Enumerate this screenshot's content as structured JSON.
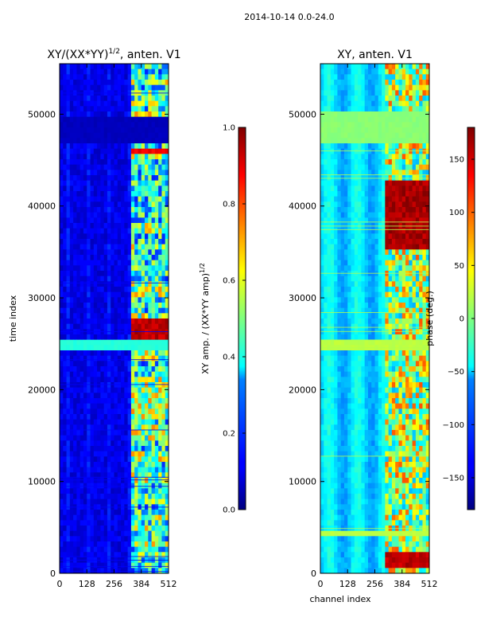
{
  "figure": {
    "suptitle": "2014-10-14 0.0-24.0"
  },
  "chart_data": [
    {
      "type": "heatmap",
      "title_main": "XY/(XX*YY)",
      "title_sup": "1/2",
      "title_tail": ", anten. V1",
      "xlabel": "",
      "ylabel": "time index",
      "xlim": [
        0,
        512
      ],
      "ylim": [
        0,
        55500
      ],
      "xticks": [
        0,
        128,
        256,
        384,
        512
      ],
      "yticks": [
        0,
        10000,
        20000,
        30000,
        40000,
        50000
      ],
      "colorbar": {
        "min": 0.0,
        "max": 1.0,
        "ticks": [
          "0.0",
          "0.2",
          "0.4",
          "0.6",
          "0.8",
          "1.0"
        ],
        "label_main": "XY amp. / (XX*YY amp)",
        "label_sup": "1/2",
        "colormap": "jet"
      },
      "bands": [
        {
          "t_start": 24500,
          "t_end": 25500,
          "level": 0.4
        },
        {
          "t_start": 47000,
          "t_end": 49500,
          "level": 0.05
        }
      ],
      "hot_regions": [
        {
          "x_start": 335,
          "x_end": 512,
          "t_start": 25500,
          "t_end": 27500,
          "level": 0.9
        },
        {
          "x_start": 335,
          "x_end": 512,
          "t_start": 45500,
          "t_end": 46200,
          "level": 0.85
        }
      ]
    },
    {
      "type": "heatmap",
      "title": "XY, anten. V1",
      "xlabel": "channel index",
      "ylabel": "",
      "xlim": [
        0,
        512
      ],
      "ylim": [
        0,
        55500
      ],
      "xticks": [
        0,
        128,
        256,
        384,
        512
      ],
      "yticks": [
        0,
        10000,
        20000,
        30000,
        40000,
        50000
      ],
      "colorbar": {
        "min": -180,
        "max": 180,
        "ticks": [
          "−150",
          "−100",
          "−50",
          "0",
          "50",
          "100",
          "150"
        ],
        "tick_values": [
          -150,
          -100,
          -50,
          0,
          50,
          100,
          150
        ],
        "label": "phase (deg.)",
        "colormap": "jet"
      },
      "bands": [
        {
          "t_start": 47000,
          "t_end": 50500,
          "level": 0.5
        },
        {
          "t_start": 24500,
          "t_end": 25500,
          "level": 0.55
        },
        {
          "t_start": 4000,
          "t_end": 4500,
          "level": 0.55
        }
      ],
      "hot_regions": [
        {
          "x_start": 310,
          "x_end": 512,
          "t_start": 35000,
          "t_end": 42500,
          "level": 0.92
        },
        {
          "x_start": 310,
          "x_end": 512,
          "t_start": 500,
          "t_end": 2500,
          "level": 0.9
        }
      ]
    }
  ]
}
